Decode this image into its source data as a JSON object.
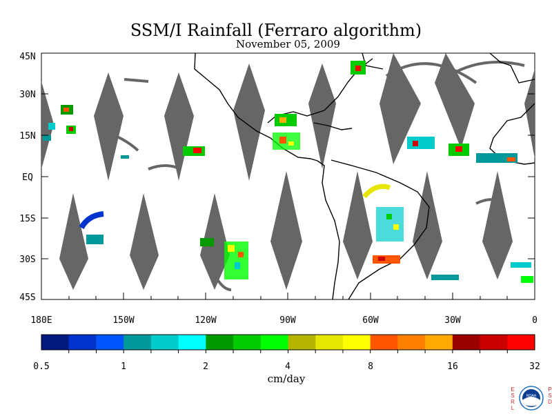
{
  "header": {
    "title": "SSM/I Rainfall (Ferraro algorithm)",
    "date": "November 05, 2009"
  },
  "map": {
    "lat_labels": [
      "45N",
      "30N",
      "15N",
      "EQ",
      "15S",
      "30S",
      "45S"
    ],
    "lon_labels": [
      "180E",
      "150W",
      "120W",
      "90W",
      "60W",
      "30W",
      "0"
    ],
    "no_data_color": "#666666",
    "coast_color": "#000000"
  },
  "colorbar": {
    "colors": [
      "#001a80",
      "#0033cc",
      "#0055ff",
      "#009999",
      "#00cccc",
      "#00ffff",
      "#009900",
      "#00cc00",
      "#00ff00",
      "#b3b300",
      "#e6e600",
      "#ffff00",
      "#ff5500",
      "#ff8000",
      "#ffaa00",
      "#990000",
      "#cc0000",
      "#ff0000"
    ],
    "tick_labels": [
      "0.5",
      "1",
      "2",
      "4",
      "8",
      "16",
      "32"
    ],
    "unit_label": "cm/day"
  },
  "logo": {
    "left_text": "ESRL",
    "right_text": "PSD",
    "center_text": "NOAA"
  }
}
